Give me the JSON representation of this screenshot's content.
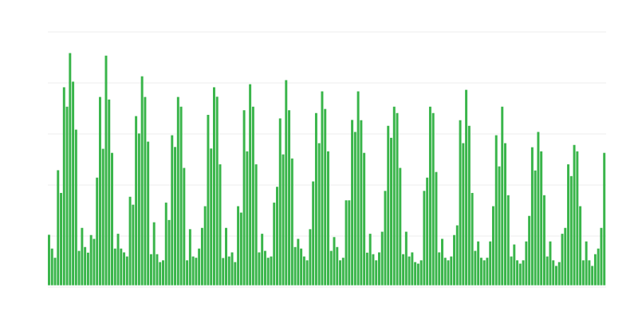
{
  "chart_data": {
    "type": "bar",
    "title": "",
    "xlabel": "",
    "ylabel": "",
    "ylim": [
      0,
      100
    ],
    "gridlines": [
      0,
      20,
      40,
      60,
      80,
      100
    ],
    "grid": true,
    "tick_labels_shown": false,
    "legend": "none",
    "bar_color": "#39b54a",
    "grid_color": "#eeeeee",
    "values": [
      20.5,
      15.1,
      11.5,
      45.8,
      36.9,
      78.3,
      70.7,
      91.7,
      80.5,
      61.7,
      14.2,
      23.2,
      15.7,
      13.5,
      20.4,
      18.9,
      42.9,
      74.5,
      54.2,
      90.7,
      73.5,
      52.6,
      15.1,
      20.9,
      15.1,
      13.6,
      12.0,
      35.4,
      32.3,
      67.0,
      60.2,
      82.6,
      74.5,
      57.0,
      12.9,
      25.4,
      12.9,
      9.8,
      10.5,
      33.1,
      26.3,
      59.5,
      54.9,
      74.5,
      70.7,
      46.7,
      10.5,
      22.7,
      12.0,
      11.5,
      15.1,
      23.2,
      31.7,
      67.5,
      54.3,
      78.3,
      74.6,
      48.1,
      11.4,
      23.2,
      12.0,
      13.6,
      9.8,
      31.7,
      29.2,
      69.3,
      53.2,
      79.5,
      70.7,
      48.1,
      13.6,
      20.9,
      14.2,
      11.5,
      12.0,
      33.1,
      39.3,
      66.1,
      52.0,
      81.1,
      69.3,
      50.4,
      15.7,
      18.9,
      15.1,
      12.0,
      10.5,
      22.7,
      41.4,
      68.2,
      56.4,
      76.7,
      69.8,
      53.2,
      14.2,
      19.6,
      15.7,
      10.5,
      11.5,
      34.0,
      34.0,
      65.5,
      60.8,
      76.7,
      65.4,
      52.6,
      13.5,
      20.9,
      12.9,
      10.5,
      13.6,
      21.7,
      37.7,
      63.2,
      58.5,
      70.7,
      68.2,
      46.7,
      12.9,
      21.7,
      12.0,
      13.6,
      9.8,
      9.2,
      10.5,
      37.7,
      42.9,
      70.7,
      68.2,
      45.1,
      13.6,
      18.9,
      11.5,
      10.5,
      12.0,
      20.4,
      24.2,
      65.4,
      56.4,
      77.3,
      63.2,
      36.9,
      14.2,
      17.9,
      11.5,
      10.5,
      11.5,
      17.9,
      31.7,
      59.5,
      47.3,
      70.7,
      56.4,
      36.0,
      12.0,
      16.7,
      10.5,
      9.2,
      10.5,
      17.9,
      27.9,
      54.8,
      45.7,
      60.8,
      53.2,
      36.0,
      12.0,
      17.9,
      10.5,
      8.3,
      9.8,
      20.9,
      23.2,
      48.1,
      43.5,
      55.7,
      53.2,
      31.7,
      10.5,
      17.9,
      10.5,
      8.3,
      12.9,
      15.1,
      23.2,
      52.6
    ]
  }
}
